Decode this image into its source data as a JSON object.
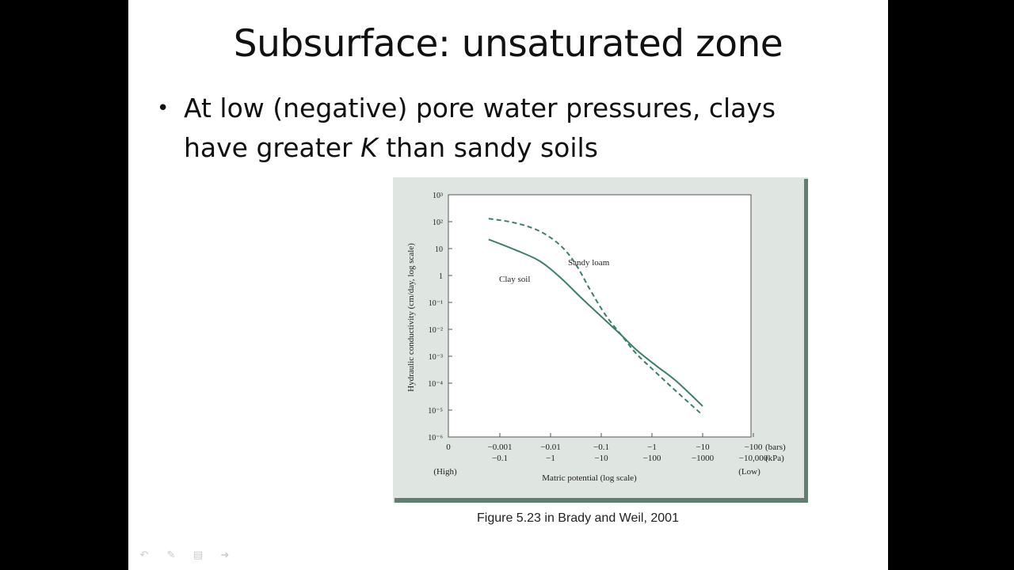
{
  "slide": {
    "title": "Subsurface: unsaturated zone",
    "bullet": {
      "mark": "•",
      "line1": "At low (negative) pore water pressures, clays",
      "line2_pre": "have greater ",
      "line2_k": "K",
      "line2_post": " than sandy soils"
    },
    "caption": "Figure 5.23 in Brady and Weil, 2001"
  },
  "chart_data": {
    "type": "line",
    "ylabel": "Hydraulic conductivity (cm/day, log scale)",
    "xlabel": "Matric potential (log scale)",
    "yscale": "log",
    "ylim": [
      1e-06,
      1000
    ],
    "y_ticks": [
      {
        "value": 1000,
        "label": "10³"
      },
      {
        "value": 100,
        "label": "10²"
      },
      {
        "value": 10,
        "label": "10"
      },
      {
        "value": 1,
        "label": "1"
      },
      {
        "value": 0.1,
        "label": "10⁻¹"
      },
      {
        "value": 0.01,
        "label": "10⁻²"
      },
      {
        "value": 0.001,
        "label": "10⁻³"
      },
      {
        "value": 0.0001,
        "label": "10⁻⁴"
      },
      {
        "value": 1e-05,
        "label": "10⁻⁵"
      },
      {
        "value": 1e-06,
        "label": "10⁻⁶"
      }
    ],
    "x_ticks": [
      {
        "bars": 0,
        "bars_label": "0",
        "kpa_label": ""
      },
      {
        "bars": -0.001,
        "bars_label": "−0.001",
        "kpa_label": "−0.1"
      },
      {
        "bars": -0.01,
        "bars_label": "−0.01",
        "kpa_label": "−1"
      },
      {
        "bars": -0.1,
        "bars_label": "−0.1",
        "kpa_label": "−10"
      },
      {
        "bars": -1,
        "bars_label": "−1",
        "kpa_label": "−100"
      },
      {
        "bars": -10,
        "bars_label": "−10",
        "kpa_label": "−1000"
      },
      {
        "bars": -100,
        "bars_label": "−100",
        "kpa_label": "−10,000"
      }
    ],
    "x_unit_labels": {
      "bars": "(bars)",
      "kpa": "(kPa)"
    },
    "x_end_labels": {
      "left": "(High)",
      "right": "(Low)"
    },
    "series": [
      {
        "name": "Sandy loam",
        "style": "dashed",
        "color": "#3f7e64",
        "points": [
          {
            "x": -0.0006,
            "y": 130
          },
          {
            "x": -0.002,
            "y": 90
          },
          {
            "x": -0.006,
            "y": 45
          },
          {
            "x": -0.015,
            "y": 14
          },
          {
            "x": -0.03,
            "y": 3
          },
          {
            "x": -0.06,
            "y": 0.3
          },
          {
            "x": -0.12,
            "y": 0.035
          },
          {
            "x": -0.25,
            "y": 0.006
          },
          {
            "x": -0.5,
            "y": 0.0012
          },
          {
            "x": -1.2,
            "y": 0.00025
          },
          {
            "x": -3,
            "y": 5e-05
          },
          {
            "x": -10,
            "y": 6.5e-06
          }
        ]
      },
      {
        "name": "Clay soil",
        "style": "solid",
        "color": "#3f7e64",
        "points": [
          {
            "x": -0.0006,
            "y": 22
          },
          {
            "x": -0.002,
            "y": 9
          },
          {
            "x": -0.006,
            "y": 3.5
          },
          {
            "x": -0.015,
            "y": 0.9
          },
          {
            "x": -0.04,
            "y": 0.15
          },
          {
            "x": -0.1,
            "y": 0.03
          },
          {
            "x": -0.25,
            "y": 0.006
          },
          {
            "x": -0.5,
            "y": 0.0017
          },
          {
            "x": -1.2,
            "y": 0.00045
          },
          {
            "x": -3,
            "y": 0.00012
          },
          {
            "x": -10,
            "y": 1.4e-05
          }
        ]
      }
    ]
  }
}
